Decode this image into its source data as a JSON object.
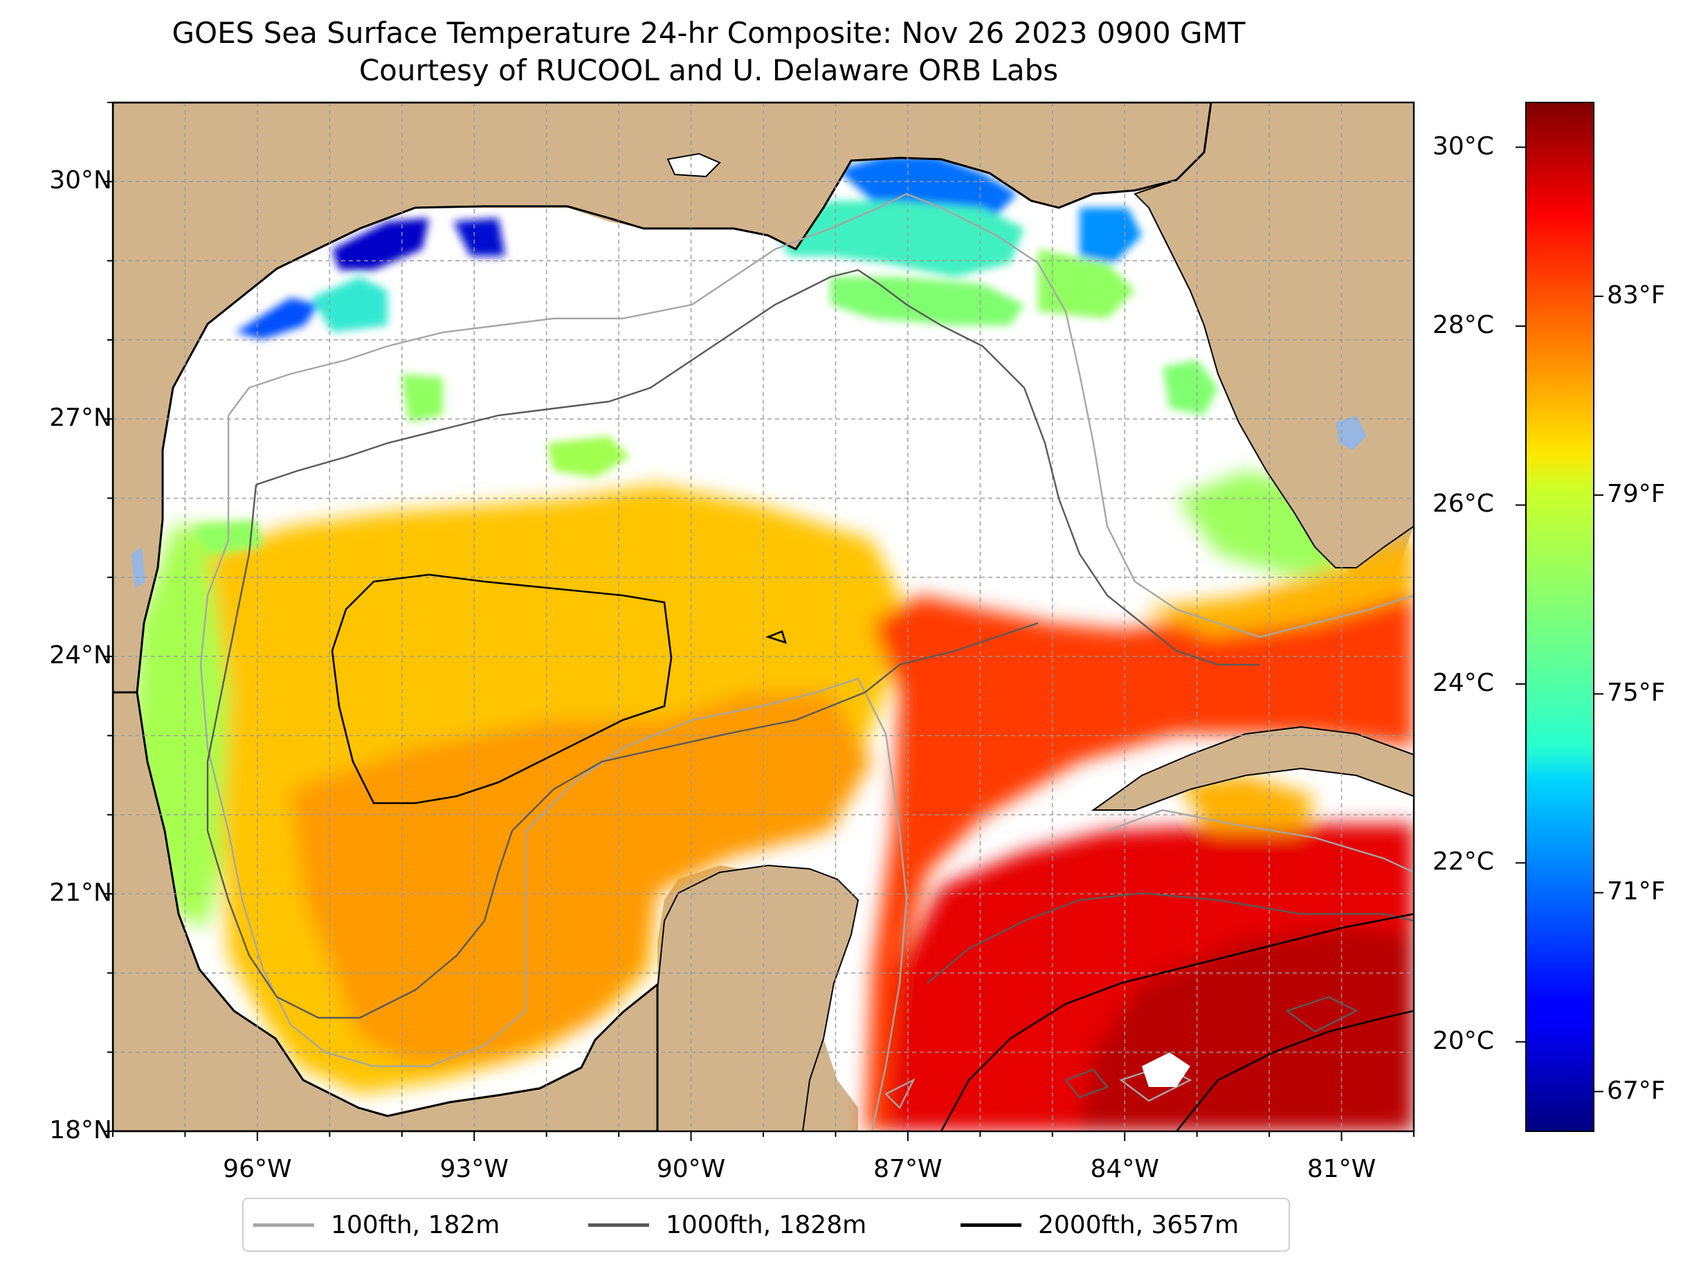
{
  "title": {
    "line1": "GOES Sea Surface Temperature 24-hr Composite: Nov 26 2023 0900 GMT",
    "line2": "Courtesy of RUCOOL and U. Delaware ORB Labs"
  },
  "map": {
    "extent": {
      "lon_min": -98.0,
      "lon_max": -80.0,
      "lat_min": 18.0,
      "lat_max": 31.0
    },
    "lat_ticks": [
      {
        "value": 30,
        "label": "30°N"
      },
      {
        "value": 27,
        "label": "27°N"
      },
      {
        "value": 24,
        "label": "24°N"
      },
      {
        "value": 21,
        "label": "21°N"
      },
      {
        "value": 18,
        "label": "18°N"
      }
    ],
    "lon_ticks": [
      {
        "value": -96,
        "label": "96°W"
      },
      {
        "value": -93,
        "label": "93°W"
      },
      {
        "value": -90,
        "label": "90°W"
      },
      {
        "value": -87,
        "label": "87°W"
      },
      {
        "value": -84,
        "label": "84°W"
      },
      {
        "value": -81,
        "label": "81°W"
      }
    ],
    "colors": {
      "land": "#d2b48c",
      "water_missing": "#ffffff",
      "lakes": "#97b6e1",
      "grid": "#b0b0b0"
    }
  },
  "colorbar": {
    "colormap": "jet",
    "celsius_range": [
      19.0,
      30.5
    ],
    "celsius_ticks": [
      {
        "value": 30,
        "label": "30°C"
      },
      {
        "value": 28,
        "label": "28°C"
      },
      {
        "value": 26,
        "label": "26°C"
      },
      {
        "value": 24,
        "label": "24°C"
      },
      {
        "value": 22,
        "label": "22°C"
      },
      {
        "value": 20,
        "label": "20°C"
      }
    ],
    "fahrenheit_ticks": [
      {
        "value": 83,
        "label": "83°F"
      },
      {
        "value": 79,
        "label": "79°F"
      },
      {
        "value": 75,
        "label": "75°F"
      },
      {
        "value": 71,
        "label": "71°F"
      },
      {
        "value": 67,
        "label": "67°F"
      }
    ]
  },
  "legend": {
    "items": [
      {
        "label": "100fth, 182m",
        "color": "#a6a6a6"
      },
      {
        "label": "1000fth, 1828m",
        "color": "#595959"
      },
      {
        "label": "2000fth, 3657m",
        "color": "#000000"
      }
    ]
  }
}
